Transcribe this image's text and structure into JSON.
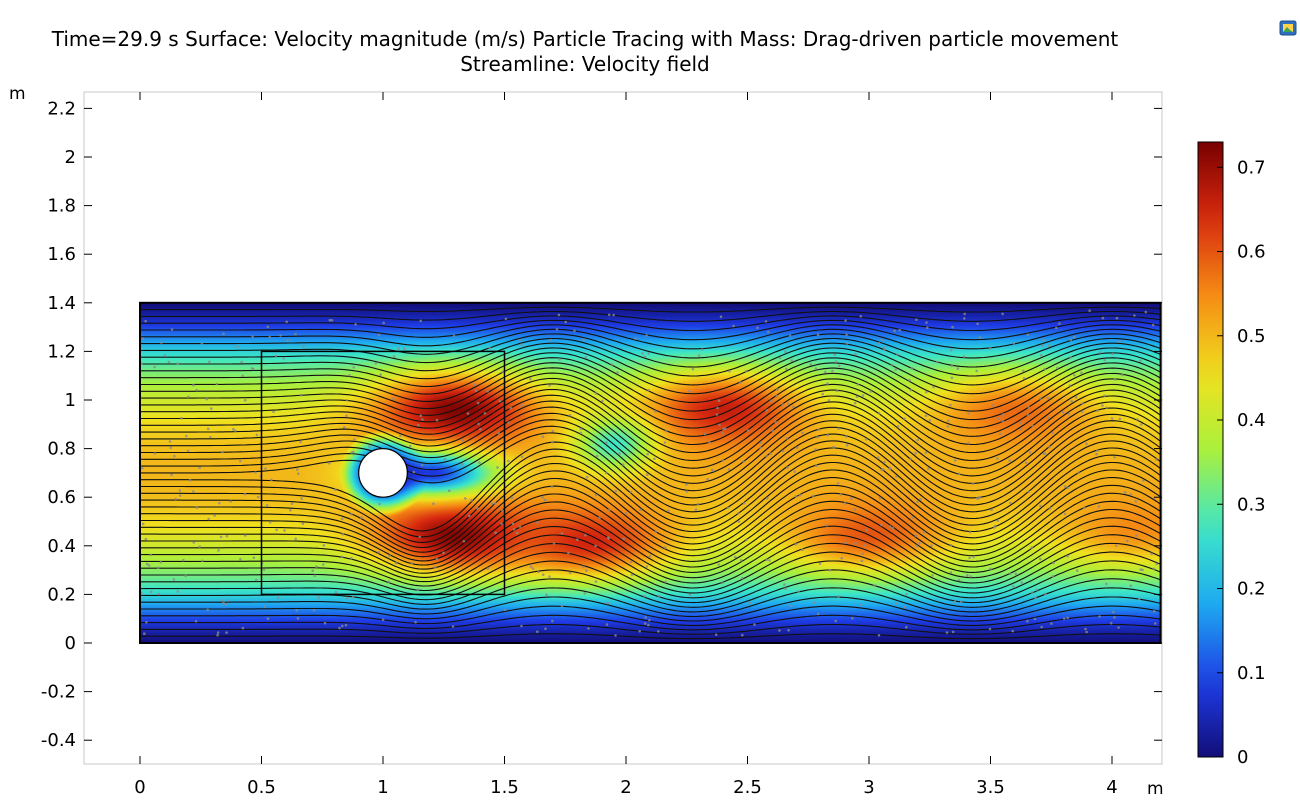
{
  "chart_data": {
    "type": "heatmap",
    "title": "Time=29.9 s Surface: Velocity magnitude (m/s) Particle Tracing with Mass: Drag-driven particle movement",
    "subtitle": "Streamline: Velocity field",
    "xlabel": "m",
    "ylabel": "m",
    "xlim": [
      -0.23,
      4.2
    ],
    "ylim": [
      -0.5,
      2.28
    ],
    "x_ticks": [
      "0",
      "0.5",
      "1",
      "1.5",
      "2",
      "2.5",
      "3",
      "3.5",
      "4"
    ],
    "y_ticks": [
      "-0.4",
      "-0.2",
      "0",
      "0.2",
      "0.4",
      "0.6",
      "0.8",
      "1",
      "1.2",
      "1.4",
      "1.6",
      "1.8",
      "2",
      "2.2"
    ],
    "colorbar": {
      "colormap": "rainbow",
      "range": [
        0,
        0.73
      ],
      "ticks": [
        "0",
        "0.1",
        "0.2",
        "0.3",
        "0.4",
        "0.5",
        "0.6",
        "0.7"
      ]
    },
    "domain": {
      "channel": {
        "x": [
          0,
          4.2
        ],
        "y": [
          0,
          1.4
        ]
      },
      "cylinder": {
        "center": [
          1.0,
          0.7
        ],
        "radius": 0.1
      },
      "release_box": {
        "x": [
          0.5,
          1.5
        ],
        "y": [
          0.2,
          1.2
        ]
      }
    },
    "field": {
      "inlet_peak_velocity": 0.5,
      "wake_vortices": [
        {
          "x": 1.3,
          "y": 0.96,
          "speed": 0.72
        },
        {
          "x": 1.3,
          "y": 0.44,
          "speed": 0.72
        },
        {
          "x": 1.85,
          "y": 0.42,
          "speed": 0.65
        },
        {
          "x": 2.4,
          "y": 0.96,
          "speed": 0.66
        },
        {
          "x": 3.0,
          "y": 0.45,
          "speed": 0.6
        },
        {
          "x": 3.6,
          "y": 0.95,
          "speed": 0.58
        },
        {
          "x": 4.1,
          "y": 0.48,
          "speed": 0.55
        }
      ],
      "low_speed_regions": [
        {
          "x": 1.2,
          "y": 0.7,
          "speed": 0.08
        },
        {
          "x": 1.95,
          "y": 0.82,
          "speed": 0.27
        }
      ]
    },
    "streamline_count": 50
  },
  "icons": {
    "corner": "image-export-icon"
  }
}
